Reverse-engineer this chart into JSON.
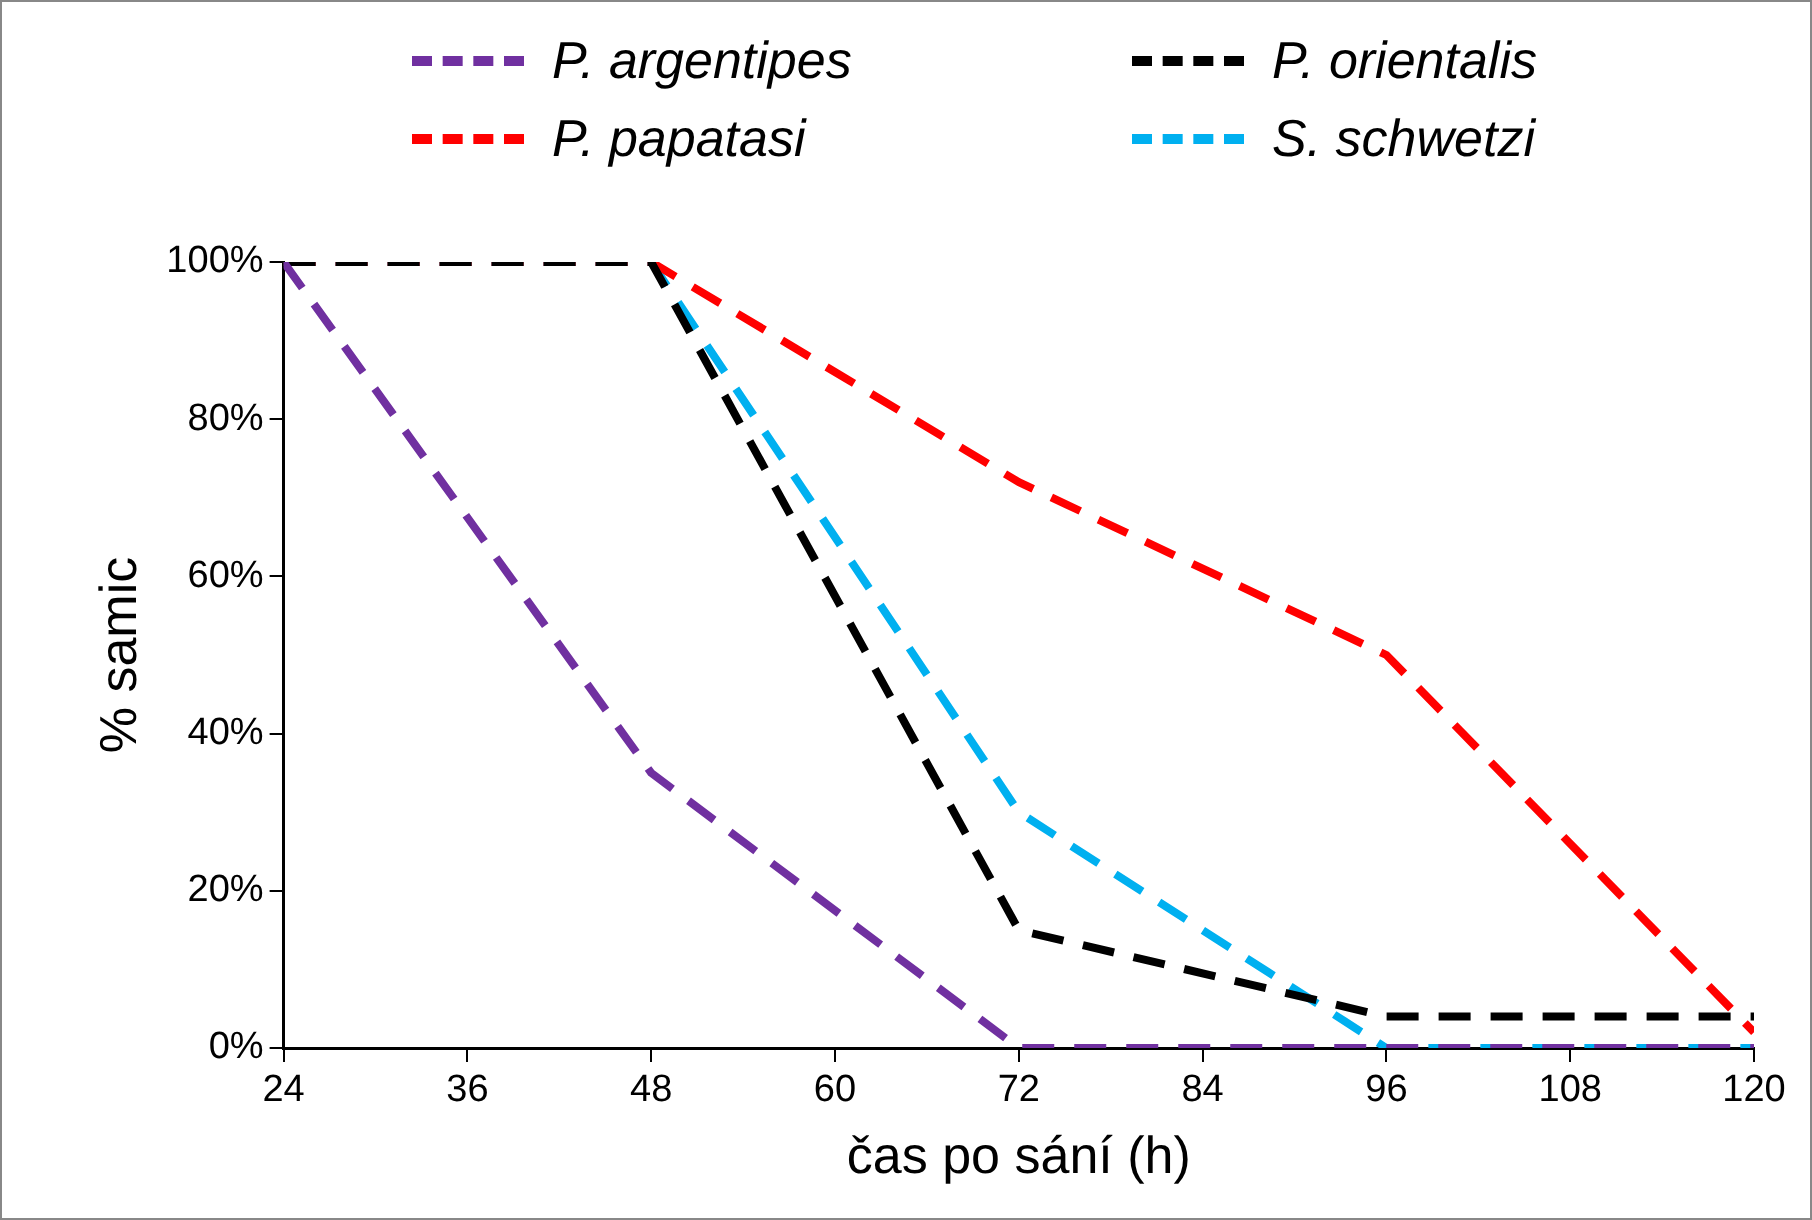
{
  "chart_data": {
    "type": "line",
    "xlabel": "čas po sání (h)",
    "ylabel": "% samic",
    "x": [
      24,
      48,
      72,
      96,
      120
    ],
    "series": [
      {
        "name": "P. argentipes",
        "color": "#7030a0",
        "values": [
          100,
          35,
          0,
          0,
          0
        ]
      },
      {
        "name": "P. orientalis",
        "color": "#000000",
        "values": [
          100,
          100,
          15,
          4,
          4
        ]
      },
      {
        "name": "P. papatasi",
        "color": "#ff0000",
        "values": [
          100,
          100,
          72,
          50,
          2
        ]
      },
      {
        "name": "S. schwetzi",
        "color": "#00b0f0",
        "values": [
          100,
          100,
          30,
          0,
          0
        ]
      }
    ],
    "xlim": [
      24,
      120
    ],
    "xticks": [
      24,
      36,
      48,
      60,
      72,
      84,
      96,
      108,
      120
    ],
    "ylim": [
      0,
      100
    ],
    "yticks": [
      {
        "value": 0,
        "label": "0%"
      },
      {
        "value": 20,
        "label": "20%"
      },
      {
        "value": 40,
        "label": "40%"
      },
      {
        "value": 60,
        "label": "60%"
      },
      {
        "value": 80,
        "label": "80%"
      },
      {
        "value": 100,
        "label": "100%"
      }
    ],
    "grid": false,
    "legend": "top",
    "line_style": "dashed",
    "marker": "none"
  }
}
